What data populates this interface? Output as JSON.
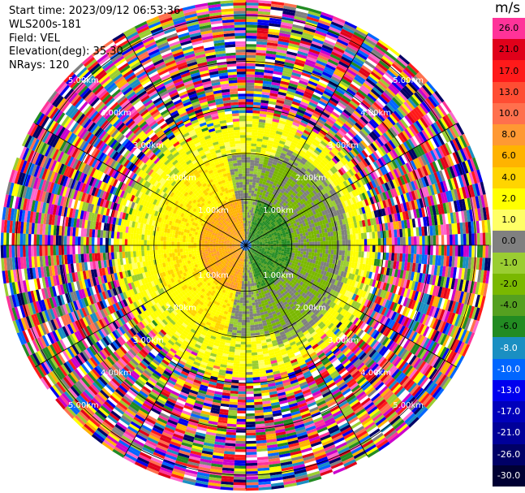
{
  "info": {
    "start_time": "Start time: 2023/09/12 06:53:36",
    "site": "WLS200s-181",
    "field": "Field: VEL",
    "elevation": "Elevation(deg): 35.30",
    "nrays": "NRays: 120"
  },
  "colorbar": {
    "unit": "m/s",
    "labels": [
      "26.0",
      "21.0",
      "17.0",
      "13.0",
      "10.0",
      "8.0",
      "6.0",
      "4.0",
      "2.0",
      "1.0",
      "0.0",
      "-1.0",
      "-2.0",
      "-4.0",
      "-6.0",
      "-8.0",
      "-10.0",
      "-13.0",
      "-17.0",
      "-21.0",
      "-26.0",
      "-30.0"
    ],
    "colors": [
      "#ff3399",
      "#e0001a",
      "#ff1a1a",
      "#ff4d33",
      "#ff704d",
      "#ff9933",
      "#ffb300",
      "#ffd400",
      "#ffff00",
      "#ffff66",
      "#808080",
      "#9acd32",
      "#7ab800",
      "#55a020",
      "#228b22",
      "#1a8fc2",
      "#0066ff",
      "#0000ee",
      "#0000bb",
      "#000099",
      "#000066",
      "#000033"
    ]
  },
  "chart_data": {
    "type": "heatmap",
    "title": "",
    "field": "VEL",
    "units": "m/s",
    "elevation_deg": 35.3,
    "nrays": 120,
    "range_ring_labels": [
      "1.00km",
      "2.00km",
      "3.00km",
      "4.00km",
      "5.00km"
    ],
    "range_rings_km": [
      1,
      2,
      3,
      4,
      5
    ],
    "max_range_km": 5.3,
    "approx_velocity_field_by_range_km": [
      {
        "range": [
          0.0,
          1.0
        ],
        "east_half": "-3 to -6 m/s (green)",
        "west_half": "4 to 8 m/s (orange/yellow)"
      },
      {
        "range": [
          1.0,
          2.0
        ],
        "east_half": "-1 to -4 m/s (olive/gray)",
        "west_half": "2 to 4 m/s (yellow)"
      },
      {
        "range": [
          2.0,
          2.8
        ],
        "description": "2 to 4 m/s (yellow ring)"
      },
      {
        "range": [
          2.8,
          5.3
        ],
        "description": "noise / random velocities"
      }
    ]
  }
}
